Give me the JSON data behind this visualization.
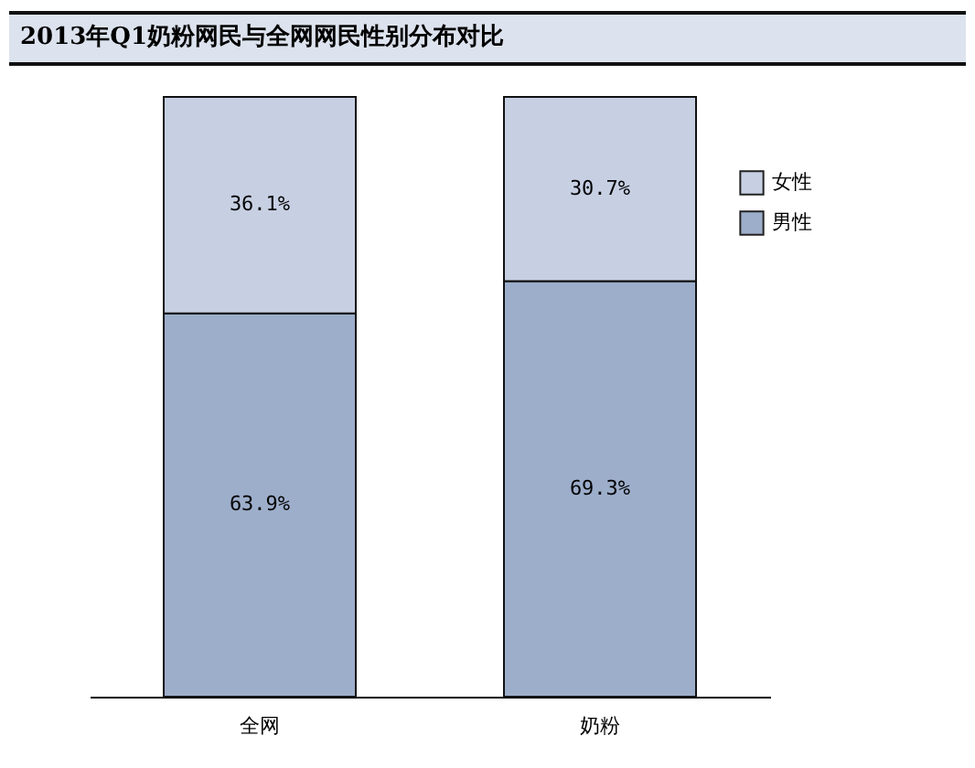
{
  "chart_data": {
    "type": "bar",
    "title": "2013年Q1奶粉网民与全网网民性别分布对比",
    "categories": [
      "全网",
      "奶粉"
    ],
    "stacked": true,
    "legend": "top right",
    "series": [
      {
        "name": "男性",
        "color": "#9daecb",
        "values": [
          63.9,
          69.3
        ],
        "value_labels": [
          "63.9%",
          "69.3%"
        ]
      },
      {
        "name": "女性",
        "color": "#c7d0e3",
        "values": [
          36.1,
          30.7
        ],
        "value_labels": [
          "36.1%",
          "30.7%"
        ]
      }
    ]
  }
}
